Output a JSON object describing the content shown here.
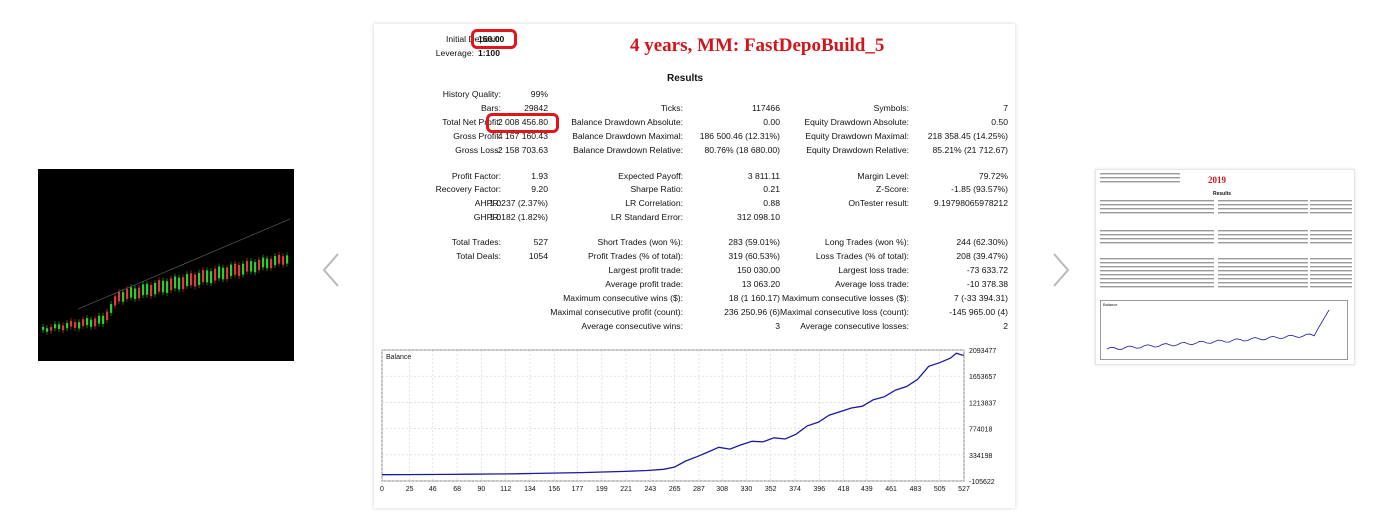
{
  "nav": {
    "prev_arrow": "prev-arrow",
    "next_arrow": "next-arrow"
  },
  "report": {
    "deposit_label": "Initial Deposit:",
    "deposit_value": "150.00",
    "leverage_label": "Leverage:",
    "leverage_value": "1:100",
    "headline": "4 years, MM: FastDepoBuild_5",
    "results_title": "Results",
    "col1": [
      {
        "label": "History Quality:",
        "value": "99%"
      },
      {
        "label": "Bars:",
        "value": "29842"
      },
      {
        "label": "Total Net Profit:",
        "value": "2 008 456.80"
      },
      {
        "label": "Gross Profit:",
        "value": "4 167 160.43"
      },
      {
        "label": "Gross Loss:",
        "value": "-2 158 703.63"
      },
      {
        "label": "Profit Factor:",
        "value": "1.93"
      },
      {
        "label": "Recovery Factor:",
        "value": "9.20"
      },
      {
        "label": "AHPR:",
        "value": "1.0237 (2.37%)"
      },
      {
        "label": "GHPR:",
        "value": "1.0182 (1.82%)"
      },
      {
        "label": "Total Trades:",
        "value": "527"
      },
      {
        "label": "Total Deals:",
        "value": "1054"
      }
    ],
    "col2": [
      {
        "label": "Ticks:",
        "value": "117466"
      },
      {
        "label": "Balance Drawdown Absolute:",
        "value": "0.00"
      },
      {
        "label": "Balance Drawdown Maximal:",
        "value": "186 500.46 (12.31%)"
      },
      {
        "label": "Balance Drawdown Relative:",
        "value": "80.76% (18 680.00)"
      },
      {
        "label": "Expected Payoff:",
        "value": "3 811.11"
      },
      {
        "label": "Sharpe Ratio:",
        "value": "0.21"
      },
      {
        "label": "LR Correlation:",
        "value": "0.88"
      },
      {
        "label": "LR Standard Error:",
        "value": "312 098.10"
      },
      {
        "label": "Short Trades (won %):",
        "value": "283 (59.01%)"
      },
      {
        "label": "Profit Trades (% of total):",
        "value": "319 (60.53%)"
      },
      {
        "label": "Largest profit trade:",
        "value": "150 030.00"
      },
      {
        "label": "Average profit trade:",
        "value": "13 063.20"
      },
      {
        "label": "Maximum consecutive wins ($):",
        "value": "18 (1 160.17)"
      },
      {
        "label": "Maximal consecutive profit (count):",
        "value": "236 250.96 (6)"
      },
      {
        "label": "Average consecutive wins:",
        "value": "3"
      }
    ],
    "col3": [
      {
        "label": "Symbols:",
        "value": "7"
      },
      {
        "label": "Equity Drawdown Absolute:",
        "value": "0.50"
      },
      {
        "label": "Equity Drawdown Maximal:",
        "value": "218 358.45 (14.25%)"
      },
      {
        "label": "Equity Drawdown Relative:",
        "value": "85.21% (21 712.67)"
      },
      {
        "label": "Margin Level:",
        "value": "79.72%"
      },
      {
        "label": "Z-Score:",
        "value": "-1.85 (93.57%)"
      },
      {
        "label": "OnTester result:",
        "value": "9.19798065978212"
      },
      {
        "label": "Long Trades (won %):",
        "value": "244 (62.30%)"
      },
      {
        "label": "Loss Trades (% of total):",
        "value": "208 (39.47%)"
      },
      {
        "label": "Largest loss trade:",
        "value": "-73 633.72"
      },
      {
        "label": "Average loss trade:",
        "value": "-10 378.38"
      },
      {
        "label": "Maximum consecutive losses ($):",
        "value": "7 (-33 394.31)"
      },
      {
        "label": "Maximal consecutive loss (count):",
        "value": "-145 965.00 (4)"
      },
      {
        "label": "Average consecutive losses:",
        "value": "2"
      }
    ],
    "highlight_color": "#e0161c",
    "headline_color": "#d4141b"
  },
  "chart_data": {
    "type": "line",
    "title": "Balance",
    "x_ticks": [
      "0",
      "25",
      "46",
      "68",
      "90",
      "112",
      "134",
      "156",
      "177",
      "199",
      "221",
      "243",
      "265",
      "287",
      "308",
      "330",
      "352",
      "374",
      "396",
      "418",
      "439",
      "461",
      "483",
      "505",
      "527"
    ],
    "y_ticks": [
      "2093477",
      "1653657",
      "1213837",
      "774018",
      "334198",
      "-105622"
    ],
    "ylim": [
      -105622,
      2093477
    ],
    "xlim": [
      0,
      527
    ],
    "grid": true,
    "color": "#1a1aa0",
    "series": [
      {
        "x": [
          0,
          20,
          40,
          60,
          80,
          100,
          120,
          140,
          160,
          180,
          200,
          220,
          240,
          255,
          265,
          275,
          285,
          295,
          305,
          315,
          325,
          335,
          345,
          355,
          365,
          375,
          385,
          395,
          405,
          415,
          425,
          435,
          445,
          455,
          465,
          475,
          485,
          495,
          505,
          515,
          520,
          525,
          527
        ],
        "values": [
          150,
          1500,
          3000,
          5000,
          8000,
          12000,
          16000,
          22000,
          28000,
          36000,
          45000,
          55000,
          70000,
          90000,
          130000,
          230000,
          300000,
          380000,
          460000,
          430000,
          500000,
          560000,
          550000,
          620000,
          600000,
          680000,
          820000,
          880000,
          1000000,
          1060000,
          1120000,
          1150000,
          1260000,
          1310000,
          1420000,
          1480000,
          1600000,
          1820000,
          1880000,
          1960000,
          2040000,
          2010000,
          2008456
        ]
      }
    ]
  },
  "thumb_right": {
    "headline": "2019",
    "results_title": "Results",
    "chart_title": "Balance"
  }
}
